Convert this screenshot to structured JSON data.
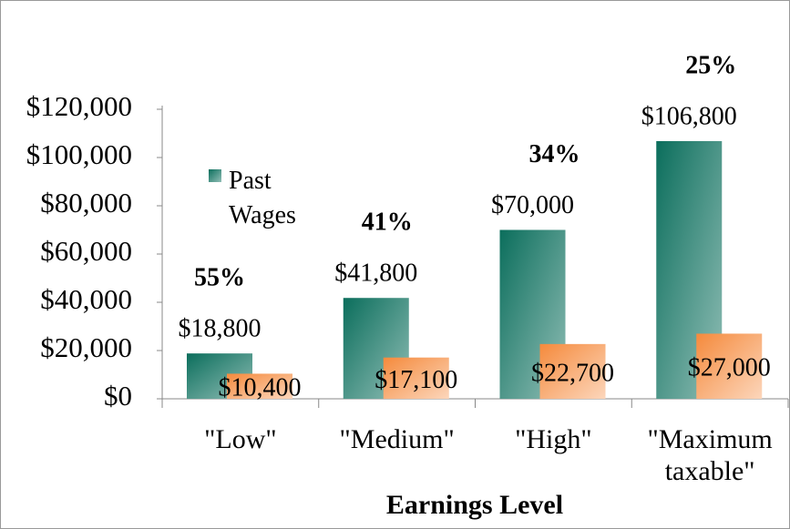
{
  "chart_data": {
    "type": "bar",
    "x_label": "Earnings Level",
    "categories": [
      "\"Low\"",
      "\"Medium\"",
      "\"High\"",
      "\"Maximum taxable\""
    ],
    "series": [
      {
        "name": "Past Wages",
        "color": "#0b6e5c",
        "values": [
          18800,
          41800,
          70000,
          106800
        ],
        "value_labels": [
          "$18,800",
          "$41,800",
          "$70,000",
          "$106,800"
        ]
      },
      {
        "color": "#f58a3c",
        "values": [
          10400,
          17100,
          22700,
          27000
        ],
        "value_labels": [
          "$10,400",
          "$17,100",
          "$22,700",
          "$27,000"
        ]
      }
    ],
    "ratio_labels": [
      "55%",
      "41%",
      "34%",
      "25%"
    ],
    "ylim": [
      0,
      120000
    ],
    "yticks": [
      {
        "value": 0,
        "label": "$0"
      },
      {
        "value": 20000,
        "label": "$20,000"
      },
      {
        "value": 40000,
        "label": "$40,000"
      },
      {
        "value": 60000,
        "label": "$60,000"
      },
      {
        "value": 80000,
        "label": "$80,000"
      },
      {
        "value": 100000,
        "label": "$100,000"
      },
      {
        "value": 120000,
        "label": "$120,000"
      }
    ],
    "grid": false
  }
}
